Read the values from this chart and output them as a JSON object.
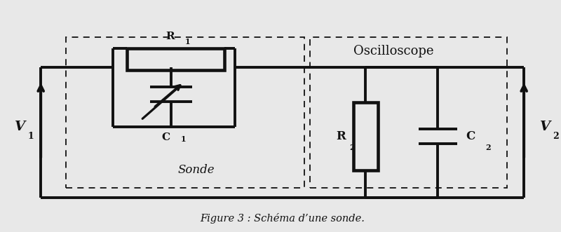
{
  "bg_color": "#e8e8e8",
  "line_color": "#111111",
  "lw": 2.8,
  "lw_thin": 1.3,
  "title": "Figure 3 : Schéma d’une sonde.",
  "title_fontsize": 10.5,
  "V1_label": "V",
  "V1_sub": "1",
  "V2_label": "V",
  "V2_sub": "2",
  "R1_label": "R",
  "R1_sub": "1",
  "C1_label": "C",
  "C1_sub": "1",
  "R2_label": "R",
  "R2_sub": "2",
  "C2_label": "C",
  "C2_sub": "2",
  "Sonde_label": "Sonde",
  "Oscillo_label": "Oscilloscope"
}
